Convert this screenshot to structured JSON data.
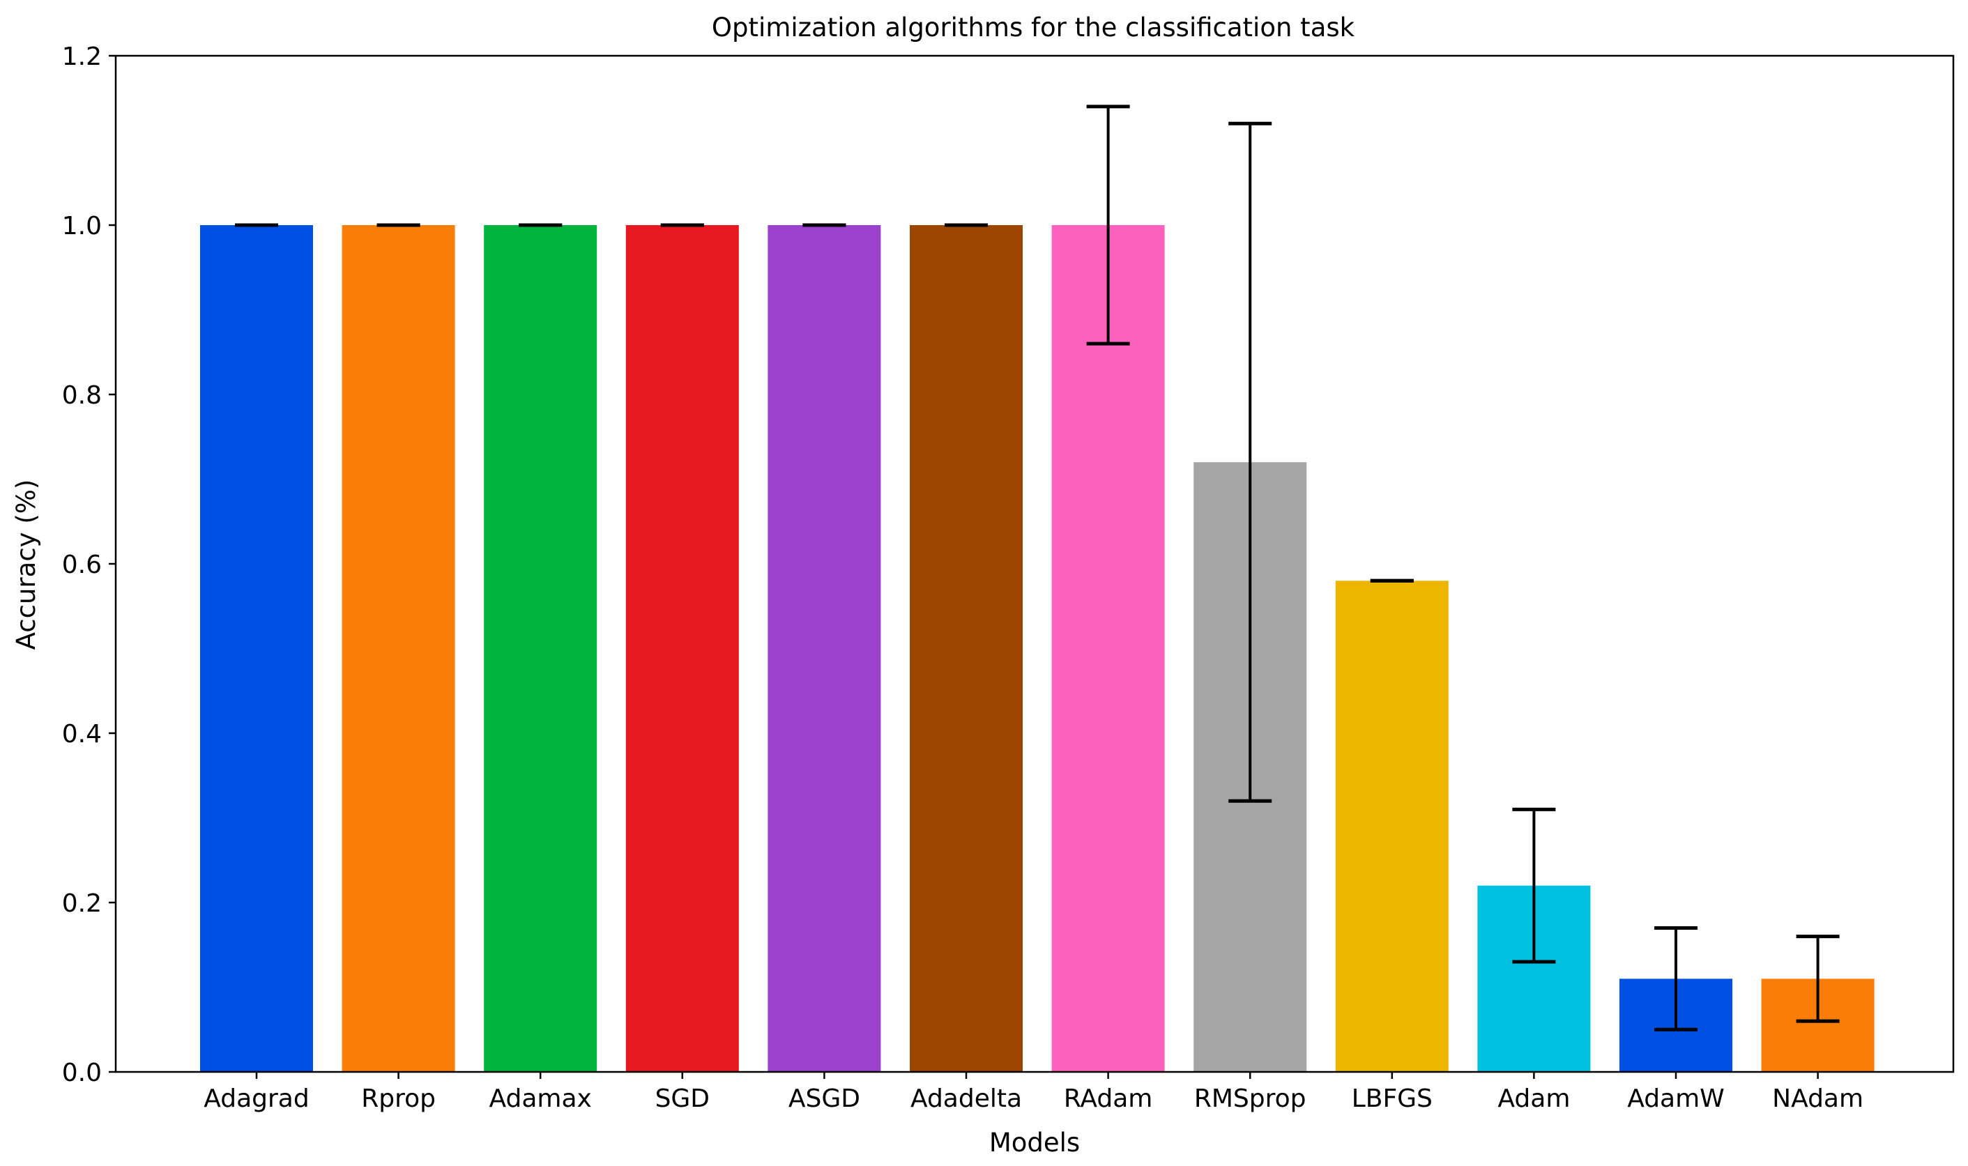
{
  "chart_data": {
    "type": "bar",
    "title": "Optimization algorithms for the classification task",
    "xlabel": "Models",
    "ylabel": "Accuracy (%)",
    "ylim": [
      0,
      1.2
    ],
    "yticks": [
      0.0,
      0.2,
      0.4,
      0.6,
      0.8,
      1.0,
      1.2
    ],
    "ytick_labels": [
      "0.0",
      "0.2",
      "0.4",
      "0.6",
      "0.8",
      "1.0",
      "1.2"
    ],
    "grid": false,
    "categories": [
      "Adagrad",
      "Rprop",
      "Adamax",
      "SGD",
      "ASGD",
      "Adadelta",
      "RAdam",
      "RMSprop",
      "LBFGS",
      "Adam",
      "AdamW",
      "NAdam"
    ],
    "values": [
      1.0,
      1.0,
      1.0,
      1.0,
      1.0,
      1.0,
      1.0,
      0.72,
      0.58,
      0.22,
      0.11,
      0.11
    ],
    "errors": [
      0.0,
      0.0,
      0.0,
      0.0,
      0.0,
      0.0,
      0.14,
      0.4,
      0.0,
      0.09,
      0.06,
      0.05
    ],
    "colors": [
      "#0150E4",
      "#FA7D07",
      "#02B33D",
      "#E81820",
      "#9B41CD",
      "#9C4601",
      "#FC61BE",
      "#A5A5A5",
      "#EEB500",
      "#00C0E0",
      "#0150E4",
      "#FA7D07"
    ]
  }
}
